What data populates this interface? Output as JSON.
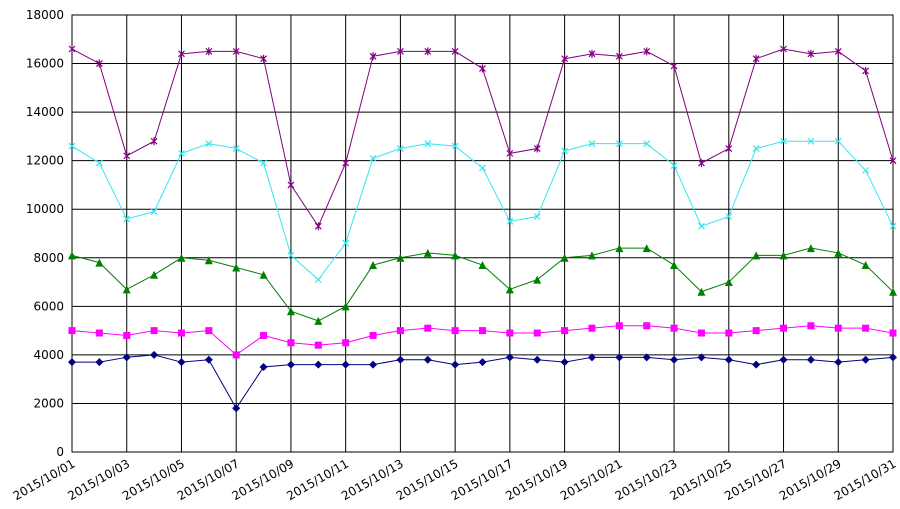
{
  "chart_data": {
    "type": "line",
    "categories": [
      "2015/10/01",
      null,
      "2015/10/03",
      null,
      "2015/10/05",
      null,
      "2015/10/07",
      null,
      "2015/10/09",
      null,
      "2015/10/11",
      null,
      "2015/10/13",
      null,
      "2015/10/15",
      null,
      "2015/10/17",
      null,
      "2015/10/19",
      null,
      "2015/10/21",
      null,
      "2015/10/23",
      null,
      "2015/10/25",
      null,
      "2015/10/27",
      null,
      "2015/10/29",
      null,
      "2015/10/31"
    ],
    "series": [
      {
        "color": "#000080",
        "marker": "diamond",
        "values": [
          3700,
          3700,
          3900,
          4000,
          3700,
          3800,
          1800,
          3500,
          3600,
          3600,
          3600,
          3600,
          3800,
          3800,
          3600,
          3700,
          3900,
          3800,
          3700,
          3900,
          3900,
          3900,
          3800,
          3900,
          3800,
          3600,
          3800,
          3800,
          3700,
          3800,
          3900
        ]
      },
      {
        "color": "#ff00ff",
        "marker": "square",
        "values": [
          5000,
          4900,
          4800,
          5000,
          4900,
          5000,
          4000,
          4800,
          4500,
          4400,
          4500,
          4800,
          5000,
          5100,
          5000,
          5000,
          4900,
          4900,
          5000,
          5100,
          5200,
          5200,
          5100,
          4900,
          4900,
          5000,
          5100,
          5200,
          5100,
          5100,
          4900
        ]
      },
      {
        "color": "#008000",
        "marker": "triangle",
        "values": [
          8100,
          7800,
          6700,
          7300,
          8000,
          7900,
          7600,
          7300,
          5800,
          5400,
          6000,
          7700,
          8000,
          8200,
          8100,
          7700,
          6700,
          7100,
          8000,
          8100,
          8400,
          8400,
          7700,
          6600,
          7000,
          8100,
          8100,
          8400,
          8200,
          7700,
          6600
        ]
      },
      {
        "color": "#33e6f2",
        "marker": "x",
        "values": [
          12600,
          11900,
          9600,
          9900,
          12300,
          12700,
          12500,
          11900,
          8100,
          7100,
          8600,
          12100,
          12500,
          12700,
          12600,
          11700,
          9500,
          9700,
          12400,
          12700,
          12700,
          12700,
          11800,
          9300,
          9700,
          12500,
          12800,
          12800,
          12800,
          11600,
          9300
        ]
      },
      {
        "color": "#800080",
        "marker": "star",
        "values": [
          16600,
          16000,
          12200,
          12800,
          16400,
          16500,
          16500,
          16200,
          11000,
          9300,
          11900,
          16300,
          16500,
          16500,
          16500,
          15800,
          12300,
          12500,
          16200,
          16400,
          16300,
          16500,
          15900,
          11900,
          12500,
          16200,
          16600,
          16400,
          16500,
          15700,
          12000
        ]
      }
    ],
    "ylim": [
      0,
      18000
    ],
    "yticks": [
      0,
      2000,
      4000,
      6000,
      8000,
      10000,
      12000,
      14000,
      16000,
      18000
    ],
    "grid": true
  }
}
